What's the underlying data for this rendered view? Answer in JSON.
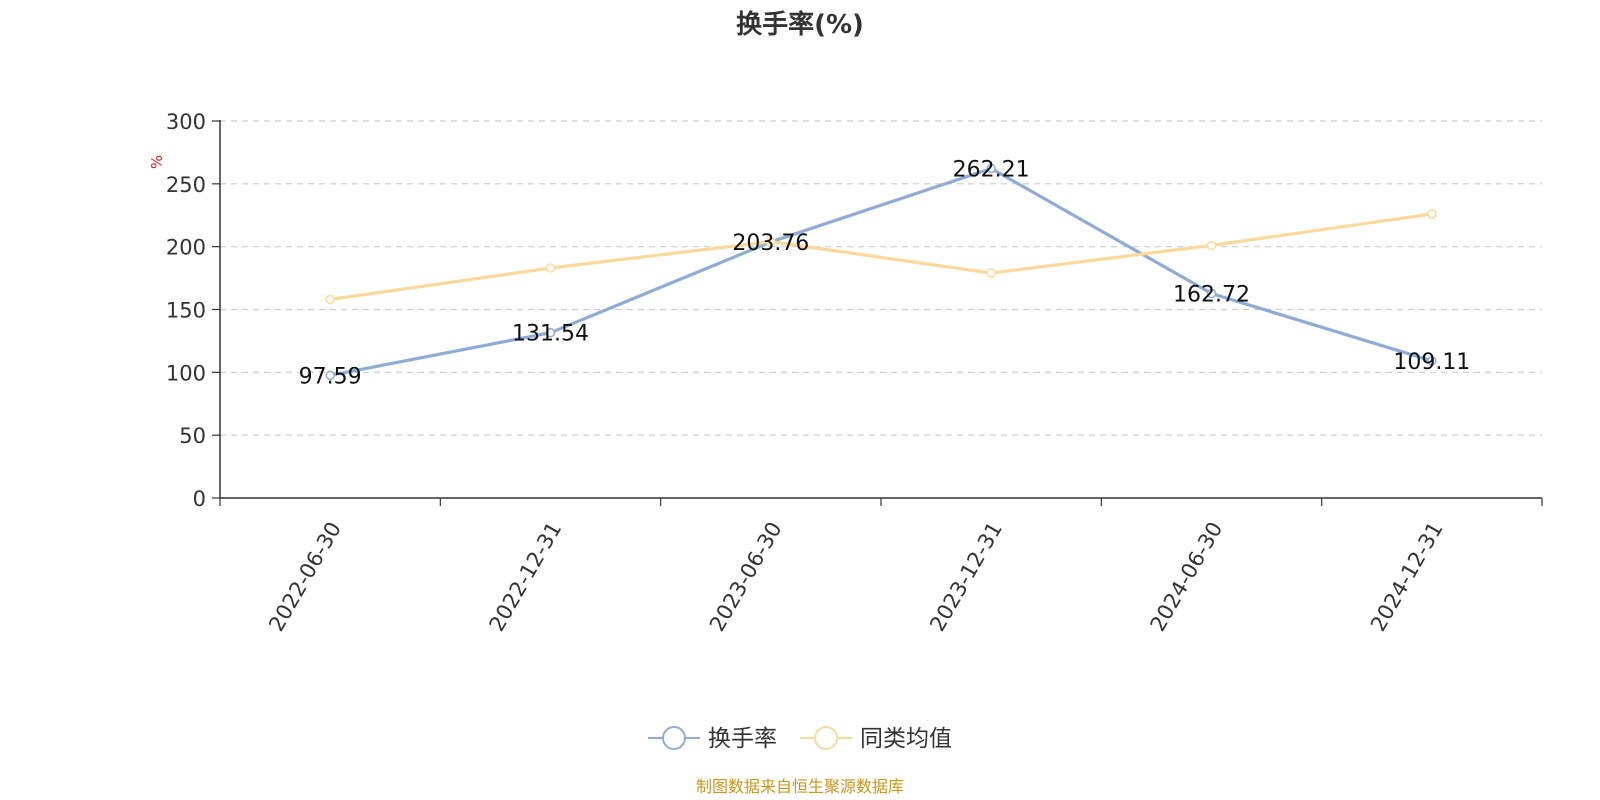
{
  "chart_data": {
    "type": "line",
    "title": "换手率(%)",
    "ylabel": "%",
    "categories": [
      "2022-06-30",
      "2022-12-31",
      "2023-06-30",
      "2023-12-31",
      "2024-06-30",
      "2024-12-31"
    ],
    "series": [
      {
        "name": "换手率",
        "values": [
          97.59,
          131.54,
          203.76,
          262.21,
          162.72,
          109.11
        ],
        "color": "#8EACD6",
        "show_labels": true
      },
      {
        "name": "同类均值",
        "values": [
          158,
          183,
          204,
          179,
          201,
          226
        ],
        "color": "#FBD99A",
        "show_labels": false
      }
    ],
    "ylim": [
      0,
      300
    ],
    "yticks": [
      0,
      50,
      100,
      150,
      200,
      250,
      300
    ],
    "grid": true,
    "legend_position": "bottom"
  },
  "colors": {
    "axis": "#333333",
    "grid": "#cccccc",
    "ylabel": "#e01e1e",
    "source": "#c8971f"
  },
  "source": "制图数据来自恒生聚源数据库"
}
